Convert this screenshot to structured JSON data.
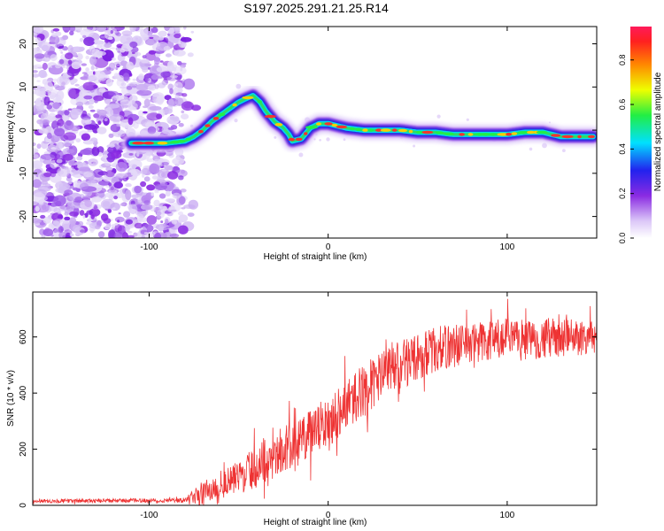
{
  "title": "S197.2025.291.21.25.R14",
  "colors": {
    "snr_line": "#ee3333",
    "background": "#ffffff",
    "axis": "#000000"
  },
  "chart_data": [
    {
      "type": "heatmap",
      "name": "spectrogram",
      "xlabel": "Height of straight line (km)",
      "ylabel": "Frequency (Hz)",
      "xlim": [
        -165,
        150
      ],
      "ylim": [
        -25,
        24
      ],
      "xticks": [
        -100,
        0,
        100
      ],
      "yticks": [
        -20,
        -10,
        0,
        10,
        20
      ],
      "colorbar": {
        "label": "Normalized spectral amplitude",
        "range": [
          0,
          0.95
        ],
        "ticks": [
          "0.0",
          "0.2",
          "0.4",
          "0.6",
          "0.8"
        ]
      },
      "noise_region_x": [
        -165,
        -80
      ],
      "ridge": {
        "x": [
          -110,
          -100,
          -90,
          -80,
          -75,
          -70,
          -65,
          -60,
          -55,
          -50,
          -45,
          -42,
          -38,
          -35,
          -30,
          -25,
          -22,
          -20,
          -15,
          -10,
          -5,
          0,
          10,
          20,
          30,
          40,
          50,
          60,
          70,
          80,
          90,
          100,
          110,
          120,
          130,
          140,
          148
        ],
        "y": [
          -3,
          -3,
          -3,
          -2.5,
          -1.5,
          0,
          2,
          3.5,
          5,
          6.5,
          7.5,
          8,
          6.5,
          4.5,
          2,
          0.5,
          -1,
          -2.5,
          -2,
          0.5,
          1.5,
          1.5,
          0.5,
          0,
          0,
          0,
          -0.5,
          -0.5,
          -1,
          -1,
          -1,
          -1,
          -0.5,
          -0.5,
          -1.5,
          -1.5,
          -1.5
        ]
      }
    },
    {
      "type": "line",
      "name": "snr",
      "xlabel": "Height of straight line (km)",
      "ylabel": "SNR (10 * v/v)",
      "xlim": [
        -165,
        150
      ],
      "ylim": [
        0,
        760
      ],
      "xticks": [
        -100,
        0,
        100
      ],
      "yticks": [
        0,
        200,
        400,
        600
      ],
      "trend": {
        "x": [
          -165,
          -80,
          -70,
          -60,
          -50,
          -40,
          -30,
          -20,
          -10,
          0,
          10,
          20,
          30,
          40,
          50,
          60,
          70,
          80,
          90,
          100,
          110,
          120,
          130,
          140,
          150
        ],
        "y": [
          15,
          18,
          45,
          70,
          100,
          140,
          180,
          215,
          250,
          300,
          360,
          410,
          460,
          500,
          530,
          555,
          570,
          580,
          585,
          590,
          590,
          595,
          595,
          600,
          600
        ]
      },
      "noise_spread": {
        "x": [
          -165,
          -80,
          -70,
          -60,
          -50,
          -40,
          -30,
          -20,
          -10,
          0,
          10,
          20,
          30,
          40,
          60,
          80,
          100,
          120,
          150
        ],
        "y": [
          12,
          14,
          80,
          90,
          110,
          140,
          150,
          160,
          160,
          170,
          170,
          170,
          170,
          160,
          150,
          140,
          140,
          130,
          120
        ]
      }
    }
  ]
}
